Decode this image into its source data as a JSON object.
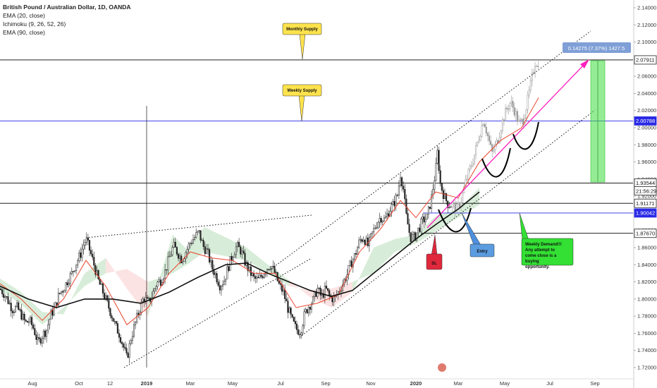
{
  "header": {
    "title": "British Pound / Australian Dollar, 1D, OANDA",
    "indicators": [
      "EMA (20, close)",
      "Ichimoku (9, 26, 52, 26)",
      "EMA (90, close)"
    ]
  },
  "chart_data": {
    "type": "candlestick",
    "symbol": "GBPAUD",
    "interval": "1D",
    "x_ticks": [
      "Aug",
      "Oct",
      "12",
      "2019",
      "Mar",
      "May",
      "Jul",
      "Sep",
      "Nov",
      "2020",
      "Mar",
      "May",
      "Jul",
      "Sep"
    ],
    "y_ticks": [
      "2.14000",
      "2.12000",
      "2.10000",
      "2.08000",
      "2.06000",
      "2.04000",
      "2.02000",
      "2.00000",
      "1.98000",
      "1.96000",
      "1.94000",
      "1.92000",
      "1.90000",
      "1.88000",
      "1.86000",
      "1.84000",
      "1.82000",
      "1.80000",
      "1.78000",
      "1.76000",
      "1.74000",
      "1.72000"
    ],
    "ylim": [
      1.715,
      2.145
    ],
    "horizontal_levels": [
      {
        "label": "2.07911",
        "value": 2.07911,
        "color": "#000000"
      },
      {
        "label": "2.00788",
        "value": 2.00788,
        "color": "#2a2ae6"
      },
      {
        "label": "1.93544",
        "value": 1.93544,
        "color": "#000000"
      },
      {
        "label": "21:56:29",
        "value": 1.9262,
        "color": "#000000"
      },
      {
        "label": "1.91171",
        "value": 1.91171,
        "color": "#000000"
      },
      {
        "label": "1.90042",
        "value": 1.90042,
        "color": "#2a2ae6"
      },
      {
        "label": "1.87670",
        "value": 1.8767,
        "color": "#000000"
      }
    ],
    "measure_label": "0.14275 (7.37%) 1427.5",
    "annotations": {
      "monthly_supply": "Monthly Supply",
      "weekly_supply": "Weekly Supply",
      "sl": "SL",
      "entry": "Entry",
      "weekly_demand": "Weekly Demand!!! Any attempt to come close is a buying opportunity."
    },
    "price_path": [
      [
        0,
        1.812
      ],
      [
        6,
        1.806
      ],
      [
        12,
        1.797
      ],
      [
        18,
        1.788
      ],
      [
        24,
        1.79
      ],
      [
        30,
        1.782
      ],
      [
        36,
        1.772
      ],
      [
        42,
        1.775
      ],
      [
        48,
        1.765
      ],
      [
        54,
        1.748
      ],
      [
        60,
        1.758
      ],
      [
        66,
        1.764
      ],
      [
        72,
        1.782
      ],
      [
        78,
        1.79
      ],
      [
        84,
        1.806
      ],
      [
        90,
        1.812
      ],
      [
        96,
        1.822
      ],
      [
        102,
        1.83
      ],
      [
        108,
        1.842
      ],
      [
        114,
        1.852
      ],
      [
        118,
        1.862
      ],
      [
        122,
        1.87
      ],
      [
        128,
        1.855
      ],
      [
        134,
        1.838
      ],
      [
        140,
        1.82
      ],
      [
        146,
        1.808
      ],
      [
        152,
        1.795
      ],
      [
        158,
        1.782
      ],
      [
        164,
        1.768
      ],
      [
        170,
        1.758
      ],
      [
        176,
        1.742
      ],
      [
        180,
        1.73
      ],
      [
        186,
        1.755
      ],
      [
        192,
        1.772
      ],
      [
        198,
        1.788
      ],
      [
        204,
        1.802
      ],
      [
        210,
        1.795
      ],
      [
        216,
        1.805
      ],
      [
        222,
        1.818
      ],
      [
        228,
        1.822
      ],
      [
        234,
        1.832
      ],
      [
        240,
        1.848
      ],
      [
        246,
        1.862
      ],
      [
        252,
        1.854
      ],
      [
        258,
        1.846
      ],
      [
        264,
        1.856
      ],
      [
        270,
        1.866
      ],
      [
        276,
        1.872
      ],
      [
        282,
        1.878
      ],
      [
        288,
        1.862
      ],
      [
        294,
        1.855
      ],
      [
        300,
        1.838
      ],
      [
        306,
        1.828
      ],
      [
        312,
        1.816
      ],
      [
        318,
        1.822
      ],
      [
        324,
        1.838
      ],
      [
        330,
        1.852
      ],
      [
        336,
        1.862
      ],
      [
        342,
        1.856
      ],
      [
        348,
        1.842
      ],
      [
        354,
        1.832
      ],
      [
        360,
        1.824
      ],
      [
        366,
        1.822
      ],
      [
        372,
        1.828
      ],
      [
        378,
        1.836
      ],
      [
        384,
        1.84
      ],
      [
        390,
        1.83
      ],
      [
        396,
        1.816
      ],
      [
        402,
        1.808
      ],
      [
        408,
        1.79
      ],
      [
        414,
        1.775
      ],
      [
        420,
        1.765
      ],
      [
        426,
        1.762
      ],
      [
        432,
        1.782
      ],
      [
        438,
        1.792
      ],
      [
        444,
        1.798
      ],
      [
        450,
        1.812
      ],
      [
        456,
        1.802
      ],
      [
        462,
        1.812
      ],
      [
        468,
        1.802
      ],
      [
        474,
        1.8
      ],
      [
        480,
        1.808
      ],
      [
        486,
        1.818
      ],
      [
        492,
        1.828
      ],
      [
        498,
        1.842
      ],
      [
        504,
        1.852
      ],
      [
        510,
        1.868
      ],
      [
        516,
        1.872
      ],
      [
        522,
        1.862
      ],
      [
        528,
        1.876
      ],
      [
        534,
        1.888
      ],
      [
        540,
        1.896
      ],
      [
        546,
        1.892
      ],
      [
        552,
        1.904
      ],
      [
        558,
        1.91
      ],
      [
        564,
        1.922
      ],
      [
        568,
        1.946
      ],
      [
        572,
        1.93
      ],
      [
        576,
        1.898
      ],
      [
        582,
        1.872
      ],
      [
        588,
        1.872
      ],
      [
        594,
        1.882
      ],
      [
        600,
        1.892
      ],
      [
        606,
        1.895
      ],
      [
        612,
        1.918
      ],
      [
        618,
        1.95
      ],
      [
        621,
        1.975
      ],
      [
        624,
        1.936
      ],
      [
        630,
        1.92
      ],
      [
        636,
        1.91
      ],
      [
        642,
        1.91
      ],
      [
        648,
        1.905
      ],
      [
        654,
        1.915
      ],
      [
        660,
        1.935
      ],
      [
        666,
        1.95
      ],
      [
        672,
        1.965
      ],
      [
        678,
        1.985
      ],
      [
        686,
        2.01
      ],
      [
        692,
        1.99
      ],
      [
        698,
        1.97
      ],
      [
        706,
        1.985
      ],
      [
        712,
        2.005
      ],
      [
        718,
        2.02
      ],
      [
        724,
        2.03
      ],
      [
        730,
        2.02
      ],
      [
        736,
        2.005
      ],
      [
        742,
        2.008
      ],
      [
        748,
        2.03
      ],
      [
        754,
        2.055
      ],
      [
        760,
        2.08
      ],
      [
        764,
        2.068
      ]
    ],
    "ema20_path": [
      [
        0,
        1.818
      ],
      [
        30,
        1.8
      ],
      [
        60,
        1.775
      ],
      [
        90,
        1.8
      ],
      [
        122,
        1.845
      ],
      [
        150,
        1.815
      ],
      [
        180,
        1.77
      ],
      [
        210,
        1.79
      ],
      [
        240,
        1.83
      ],
      [
        270,
        1.855
      ],
      [
        300,
        1.848
      ],
      [
        330,
        1.845
      ],
      [
        360,
        1.83
      ],
      [
        390,
        1.83
      ],
      [
        420,
        1.79
      ],
      [
        450,
        1.795
      ],
      [
        480,
        1.805
      ],
      [
        510,
        1.855
      ],
      [
        540,
        1.882
      ],
      [
        568,
        1.915
      ],
      [
        590,
        1.895
      ],
      [
        618,
        1.925
      ],
      [
        650,
        1.918
      ],
      [
        680,
        1.96
      ],
      [
        710,
        1.985
      ],
      [
        740,
        2.0
      ],
      [
        764,
        2.035
      ]
    ],
    "ema90_path": [
      [
        0,
        1.815
      ],
      [
        40,
        1.8
      ],
      [
        80,
        1.79
      ],
      [
        120,
        1.8
      ],
      [
        160,
        1.8
      ],
      [
        200,
        1.795
      ],
      [
        240,
        1.808
      ],
      [
        280,
        1.825
      ],
      [
        320,
        1.84
      ],
      [
        350,
        1.842
      ],
      [
        380,
        1.83
      ],
      [
        410,
        1.82
      ],
      [
        440,
        1.81
      ],
      [
        470,
        1.803
      ],
      [
        500,
        1.81
      ],
      [
        530,
        1.83
      ],
      [
        560,
        1.85
      ],
      [
        590,
        1.87
      ],
      [
        620,
        1.888
      ],
      [
        650,
        1.905
      ],
      [
        680,
        1.925
      ]
    ],
    "cloud_path": [
      [
        0,
        1.824,
        1.81
      ],
      [
        30,
        1.808,
        1.794
      ],
      [
        60,
        1.785,
        1.77
      ],
      [
        90,
        1.782,
        1.79
      ],
      [
        120,
        1.83,
        1.815
      ],
      [
        150,
        1.848,
        1.83
      ],
      [
        180,
        1.812,
        1.835
      ],
      [
        210,
        1.78,
        1.82
      ],
      [
        245,
        1.875,
        1.83
      ],
      [
        265,
        1.858,
        1.84
      ],
      [
        290,
        1.884,
        1.855
      ],
      [
        320,
        1.872,
        1.85
      ],
      [
        350,
        1.86,
        1.845
      ],
      [
        380,
        1.84,
        1.83
      ],
      [
        410,
        1.822,
        1.815
      ],
      [
        440,
        1.802,
        1.81
      ],
      [
        470,
        1.79,
        1.812
      ],
      [
        500,
        1.808,
        1.82
      ],
      [
        530,
        1.86,
        1.83
      ],
      [
        560,
        1.87,
        1.855
      ],
      [
        590,
        1.875,
        1.865
      ],
      [
        620,
        1.898,
        1.88
      ],
      [
        650,
        1.905,
        1.895
      ],
      [
        680,
        1.93,
        1.91
      ]
    ]
  }
}
